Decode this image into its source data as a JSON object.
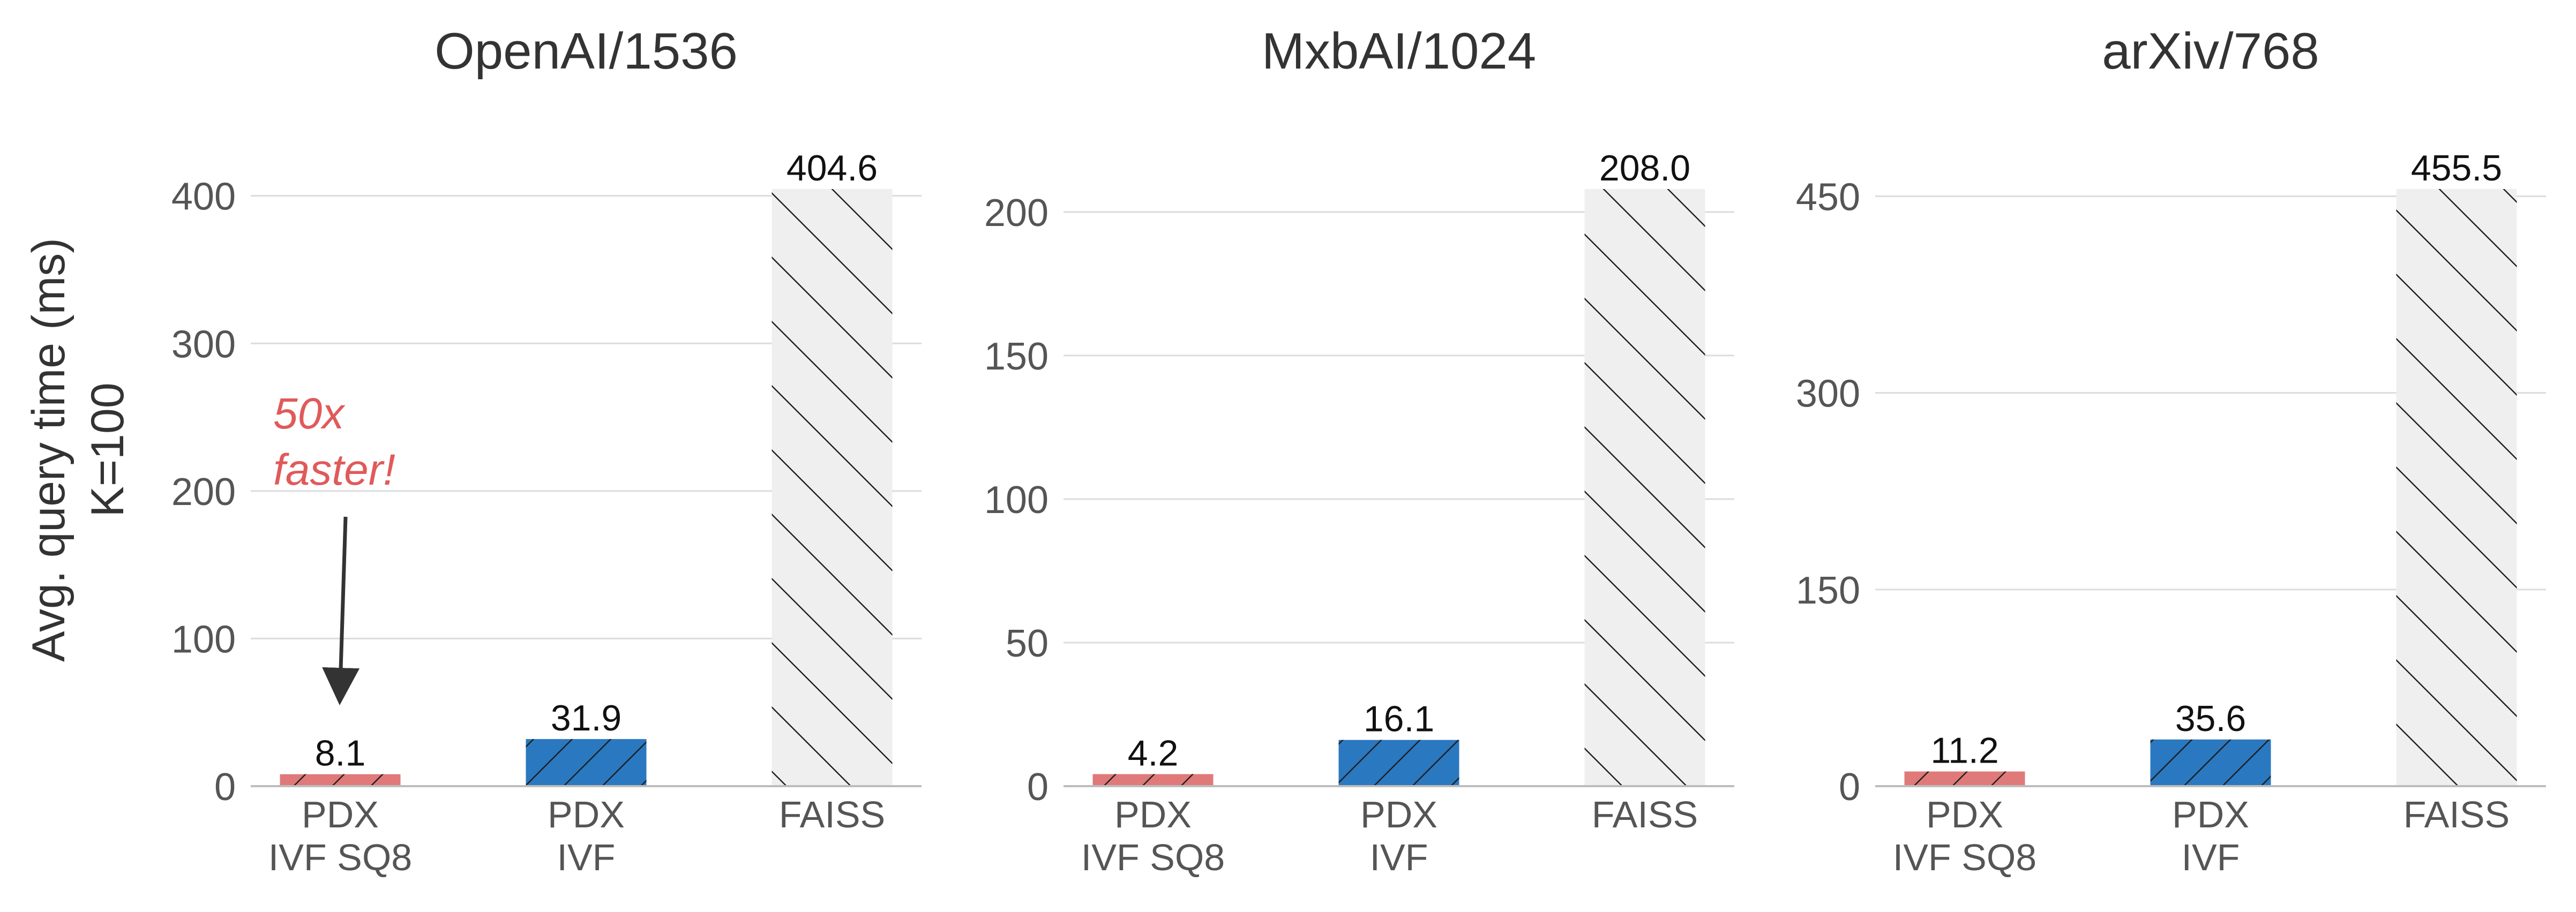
{
  "figure": {
    "ylabel_line1": "Avg. query time (ms)",
    "ylabel_line2": "K=100"
  },
  "annotation": {
    "line1": "50x",
    "line2": "faster!",
    "color": "#e05a5a"
  },
  "colors": {
    "pdx_ivf_sq8": "#e07a7a",
    "pdx_ivf": "#2a78c0",
    "faiss": "#efefef",
    "grid": "#dcdcdc",
    "axis_text": "#555555",
    "title_text": "#333333"
  },
  "chart_data": [
    {
      "type": "bar",
      "title": "OpenAI/1536",
      "categories": [
        [
          "PDX",
          "IVF SQ8"
        ],
        [
          "PDX",
          "IVF"
        ],
        [
          "FAISS"
        ]
      ],
      "values": [
        8.1,
        31.9,
        404.6
      ],
      "value_labels": [
        "8.1",
        "31.9",
        "404.6"
      ],
      "yticks": [
        0,
        100,
        200,
        300,
        400
      ],
      "ylim": [
        0,
        404.6
      ],
      "grid": true
    },
    {
      "type": "bar",
      "title": "MxbAI/1024",
      "categories": [
        [
          "PDX",
          "IVF SQ8"
        ],
        [
          "PDX",
          "IVF"
        ],
        [
          "FAISS"
        ]
      ],
      "values": [
        4.2,
        16.1,
        208.0
      ],
      "value_labels": [
        "4.2",
        "16.1",
        "208.0"
      ],
      "yticks": [
        0,
        50,
        100,
        150,
        200
      ],
      "ylim": [
        0,
        208.0
      ],
      "grid": true
    },
    {
      "type": "bar",
      "title": "arXiv/768",
      "categories": [
        [
          "PDX",
          "IVF SQ8"
        ],
        [
          "PDX",
          "IVF"
        ],
        [
          "FAISS"
        ]
      ],
      "values": [
        11.2,
        35.6,
        455.5
      ],
      "value_labels": [
        "11.2",
        "35.6",
        "455.5"
      ],
      "yticks": [
        0,
        150,
        300,
        450
      ],
      "ylim": [
        0,
        455.5
      ],
      "grid": true
    }
  ]
}
